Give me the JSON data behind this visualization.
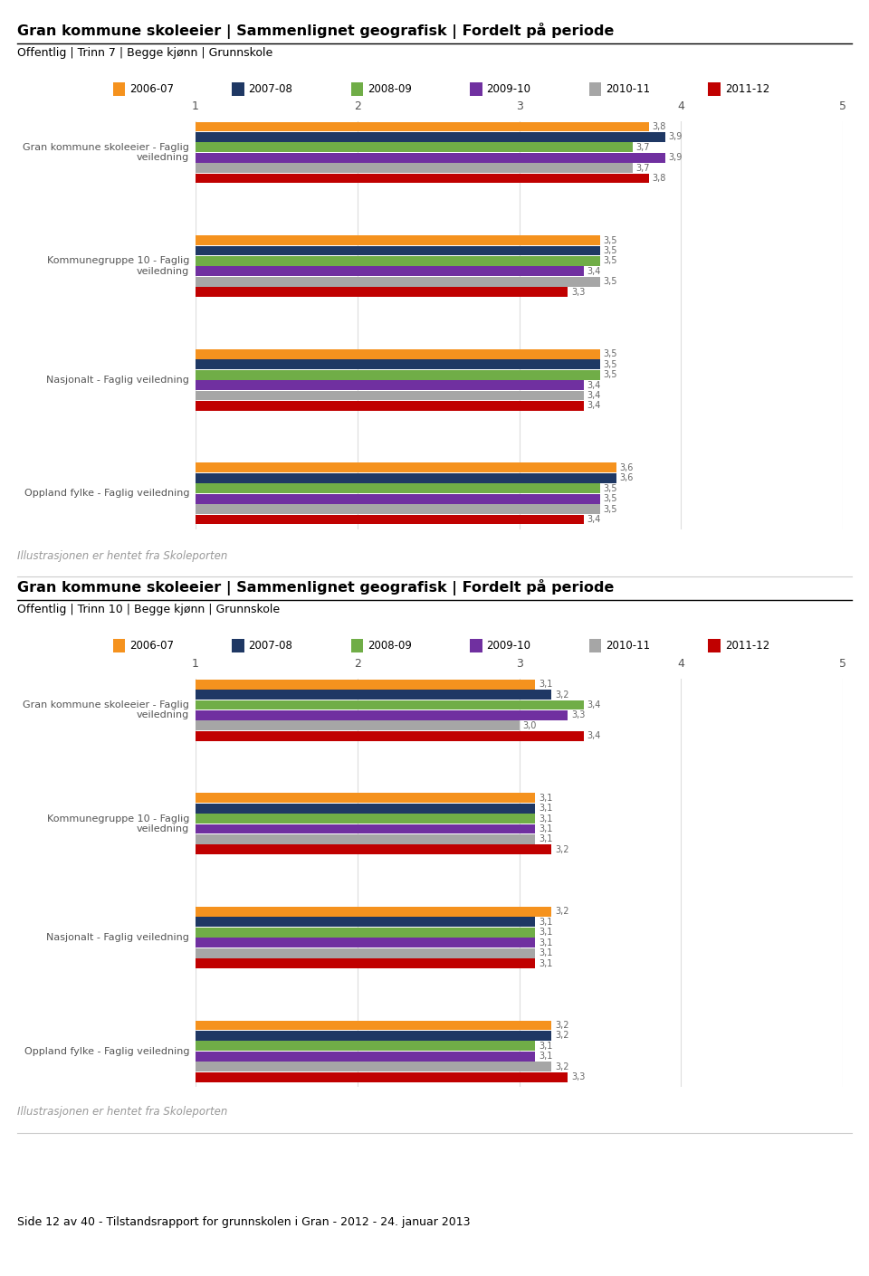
{
  "title1": "Gran kommune skoleeier | Sammenlignet geografisk | Fordelt på periode",
  "subtitle1": "Offentlig | Trinn 7 | Begge kjønn | Grunnskole",
  "title2": "Gran kommune skoleeier | Sammenlignet geografisk | Fordelt på periode",
  "subtitle2": "Offentlig | Trinn 10 | Begge kjønn | Grunnskole",
  "footer": "Illustrasjonen er hentet fra Skoleporten",
  "bottom_text": "Side 12 av 40 - Tilstandsrapport for grunnskolen i Gran - 2012 - 24. januar 2013",
  "legend_labels": [
    "2006-07",
    "2007-08",
    "2008-09",
    "2009-10",
    "2010-11",
    "2011-12"
  ],
  "colors": [
    "#F5921E",
    "#1F3864",
    "#70AD47",
    "#7030A0",
    "#A6A6A6",
    "#C00000"
  ],
  "xlim": [
    1,
    5
  ],
  "xticks": [
    1,
    2,
    3,
    4,
    5
  ],
  "groups1": [
    {
      "label": "Gran kommune skoleeier - Faglig\nveiledning",
      "values": [
        3.8,
        3.9,
        3.7,
        3.9,
        3.7,
        3.8
      ]
    },
    {
      "label": "Kommunegruppe 10 - Faglig\nveiledning",
      "values": [
        3.5,
        3.5,
        3.5,
        3.4,
        3.5,
        3.3
      ]
    },
    {
      "label": "Nasjonalt - Faglig veiledning",
      "values": [
        3.5,
        3.5,
        3.5,
        3.4,
        3.4,
        3.4
      ]
    },
    {
      "label": "Oppland fylke - Faglig veiledning",
      "values": [
        3.6,
        3.6,
        3.5,
        3.5,
        3.5,
        3.4
      ]
    }
  ],
  "groups2": [
    {
      "label": "Gran kommune skoleeier - Faglig\nveiledning",
      "values": [
        3.1,
        3.2,
        3.4,
        3.3,
        3.0,
        3.4
      ]
    },
    {
      "label": "Kommunegruppe 10 - Faglig\nveiledning",
      "values": [
        3.1,
        3.1,
        3.1,
        3.1,
        3.1,
        3.2
      ]
    },
    {
      "label": "Nasjonalt - Faglig veiledning",
      "values": [
        3.2,
        3.1,
        3.1,
        3.1,
        3.1,
        3.1
      ]
    },
    {
      "label": "Oppland fylke - Faglig veiledning",
      "values": [
        3.2,
        3.2,
        3.1,
        3.1,
        3.2,
        3.3
      ]
    }
  ]
}
